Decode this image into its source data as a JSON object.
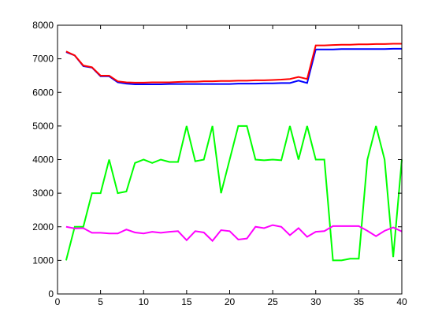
{
  "chart_data": {
    "type": "line",
    "x": [
      1,
      2,
      3,
      4,
      5,
      6,
      7,
      8,
      9,
      10,
      11,
      12,
      13,
      14,
      15,
      16,
      17,
      18,
      19,
      20,
      21,
      22,
      23,
      24,
      25,
      26,
      27,
      28,
      29,
      30,
      31,
      32,
      33,
      34,
      35,
      36,
      37,
      38,
      39,
      40
    ],
    "series": [
      {
        "color": "#0000ff",
        "values": [
          7200,
          7100,
          6780,
          6740,
          6480,
          6480,
          6300,
          6260,
          6240,
          6240,
          6240,
          6240,
          6250,
          6250,
          6250,
          6250,
          6250,
          6250,
          6250,
          6250,
          6260,
          6260,
          6260,
          6270,
          6270,
          6280,
          6280,
          6350,
          6280,
          7280,
          7280,
          7280,
          7290,
          7290,
          7290,
          7290,
          7290,
          7290,
          7300,
          7300
        ]
      },
      {
        "color": "#ff0000",
        "values": [
          7220,
          7100,
          6800,
          6750,
          6500,
          6500,
          6330,
          6300,
          6290,
          6290,
          6300,
          6300,
          6300,
          6310,
          6320,
          6320,
          6330,
          6330,
          6340,
          6340,
          6350,
          6350,
          6360,
          6360,
          6370,
          6380,
          6400,
          6460,
          6400,
          7400,
          7400,
          7410,
          7420,
          7420,
          7430,
          7430,
          7440,
          7440,
          7450,
          7450
        ]
      },
      {
        "color": "#00ff00",
        "values": [
          1000,
          2000,
          2000,
          3000,
          3000,
          4000,
          3000,
          3050,
          3900,
          4000,
          3900,
          4000,
          3930,
          3930,
          5000,
          3950,
          4000,
          5000,
          3000,
          4000,
          5000,
          5000,
          4000,
          3980,
          4000,
          3980,
          5000,
          4000,
          5000,
          4000,
          4000,
          1000,
          1000,
          1050,
          1050,
          4000,
          5000,
          4000,
          1100,
          4000
        ]
      },
      {
        "color": "#ff00ff",
        "values": [
          2000,
          1950,
          1960,
          1820,
          1820,
          1800,
          1800,
          1920,
          1830,
          1800,
          1850,
          1820,
          1850,
          1870,
          1600,
          1870,
          1830,
          1580,
          1900,
          1870,
          1620,
          1650,
          2000,
          1960,
          2050,
          2000,
          1750,
          1960,
          1700,
          1850,
          1870,
          2020,
          2020,
          2020,
          2020,
          1880,
          1720,
          1880,
          1980,
          1860
        ]
      }
    ],
    "xlim": [
      0,
      40
    ],
    "xticks": [
      0,
      5,
      10,
      15,
      20,
      25,
      30,
      35,
      40
    ],
    "ylim": [
      0,
      8000
    ],
    "yticks": [
      0,
      1000,
      2000,
      3000,
      4000,
      5000,
      6000,
      7000,
      8000
    ]
  }
}
